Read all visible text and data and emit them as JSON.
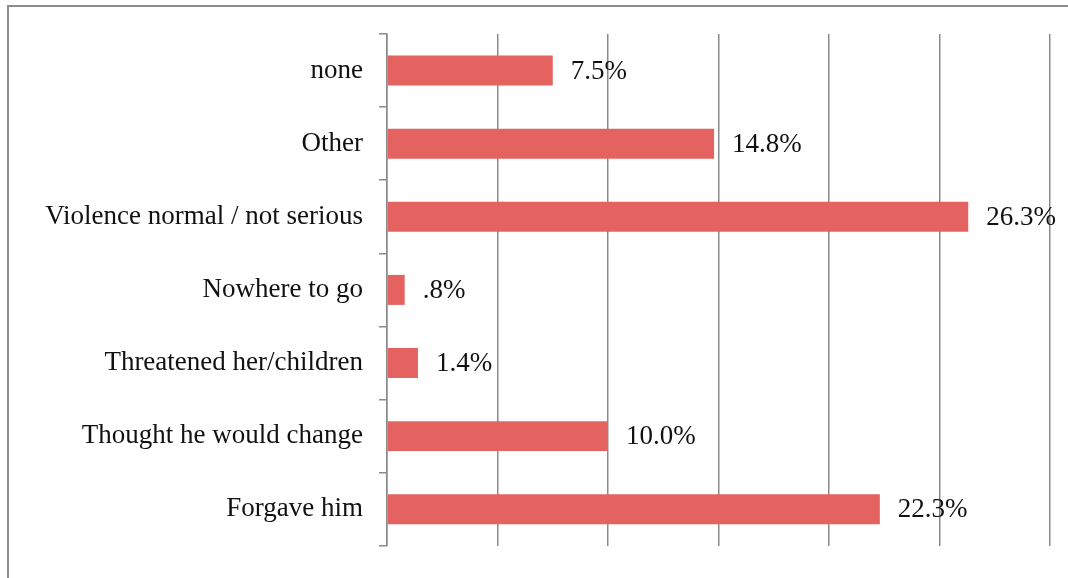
{
  "chart_data": {
    "type": "bar",
    "orientation": "horizontal",
    "categories": [
      "none",
      "Other",
      "Violence normal / not serious",
      "Nowhere to go",
      "Threatened her/children",
      "Thought he would change",
      "Forgave him"
    ],
    "values": [
      7.5,
      14.8,
      26.3,
      0.8,
      1.4,
      10.0,
      22.3
    ],
    "value_labels": [
      "7.5%",
      "14.8%",
      "26.3%",
      ".8%",
      "1.4%",
      "10.0%",
      "22.3%"
    ],
    "color": "#e4625f",
    "xlim": [
      0,
      30
    ],
    "xticks": [
      {
        "value": 0,
        "label": null
      },
      {
        "value": 5,
        "label": null
      },
      {
        "value": 10,
        "label": null
      },
      {
        "value": 15,
        "label": null
      },
      {
        "value": 20,
        "label": null
      },
      {
        "value": 25,
        "label": null
      },
      {
        "value": 30,
        "label": null
      }
    ],
    "grid": "x",
    "tick_labels": "y"
  }
}
